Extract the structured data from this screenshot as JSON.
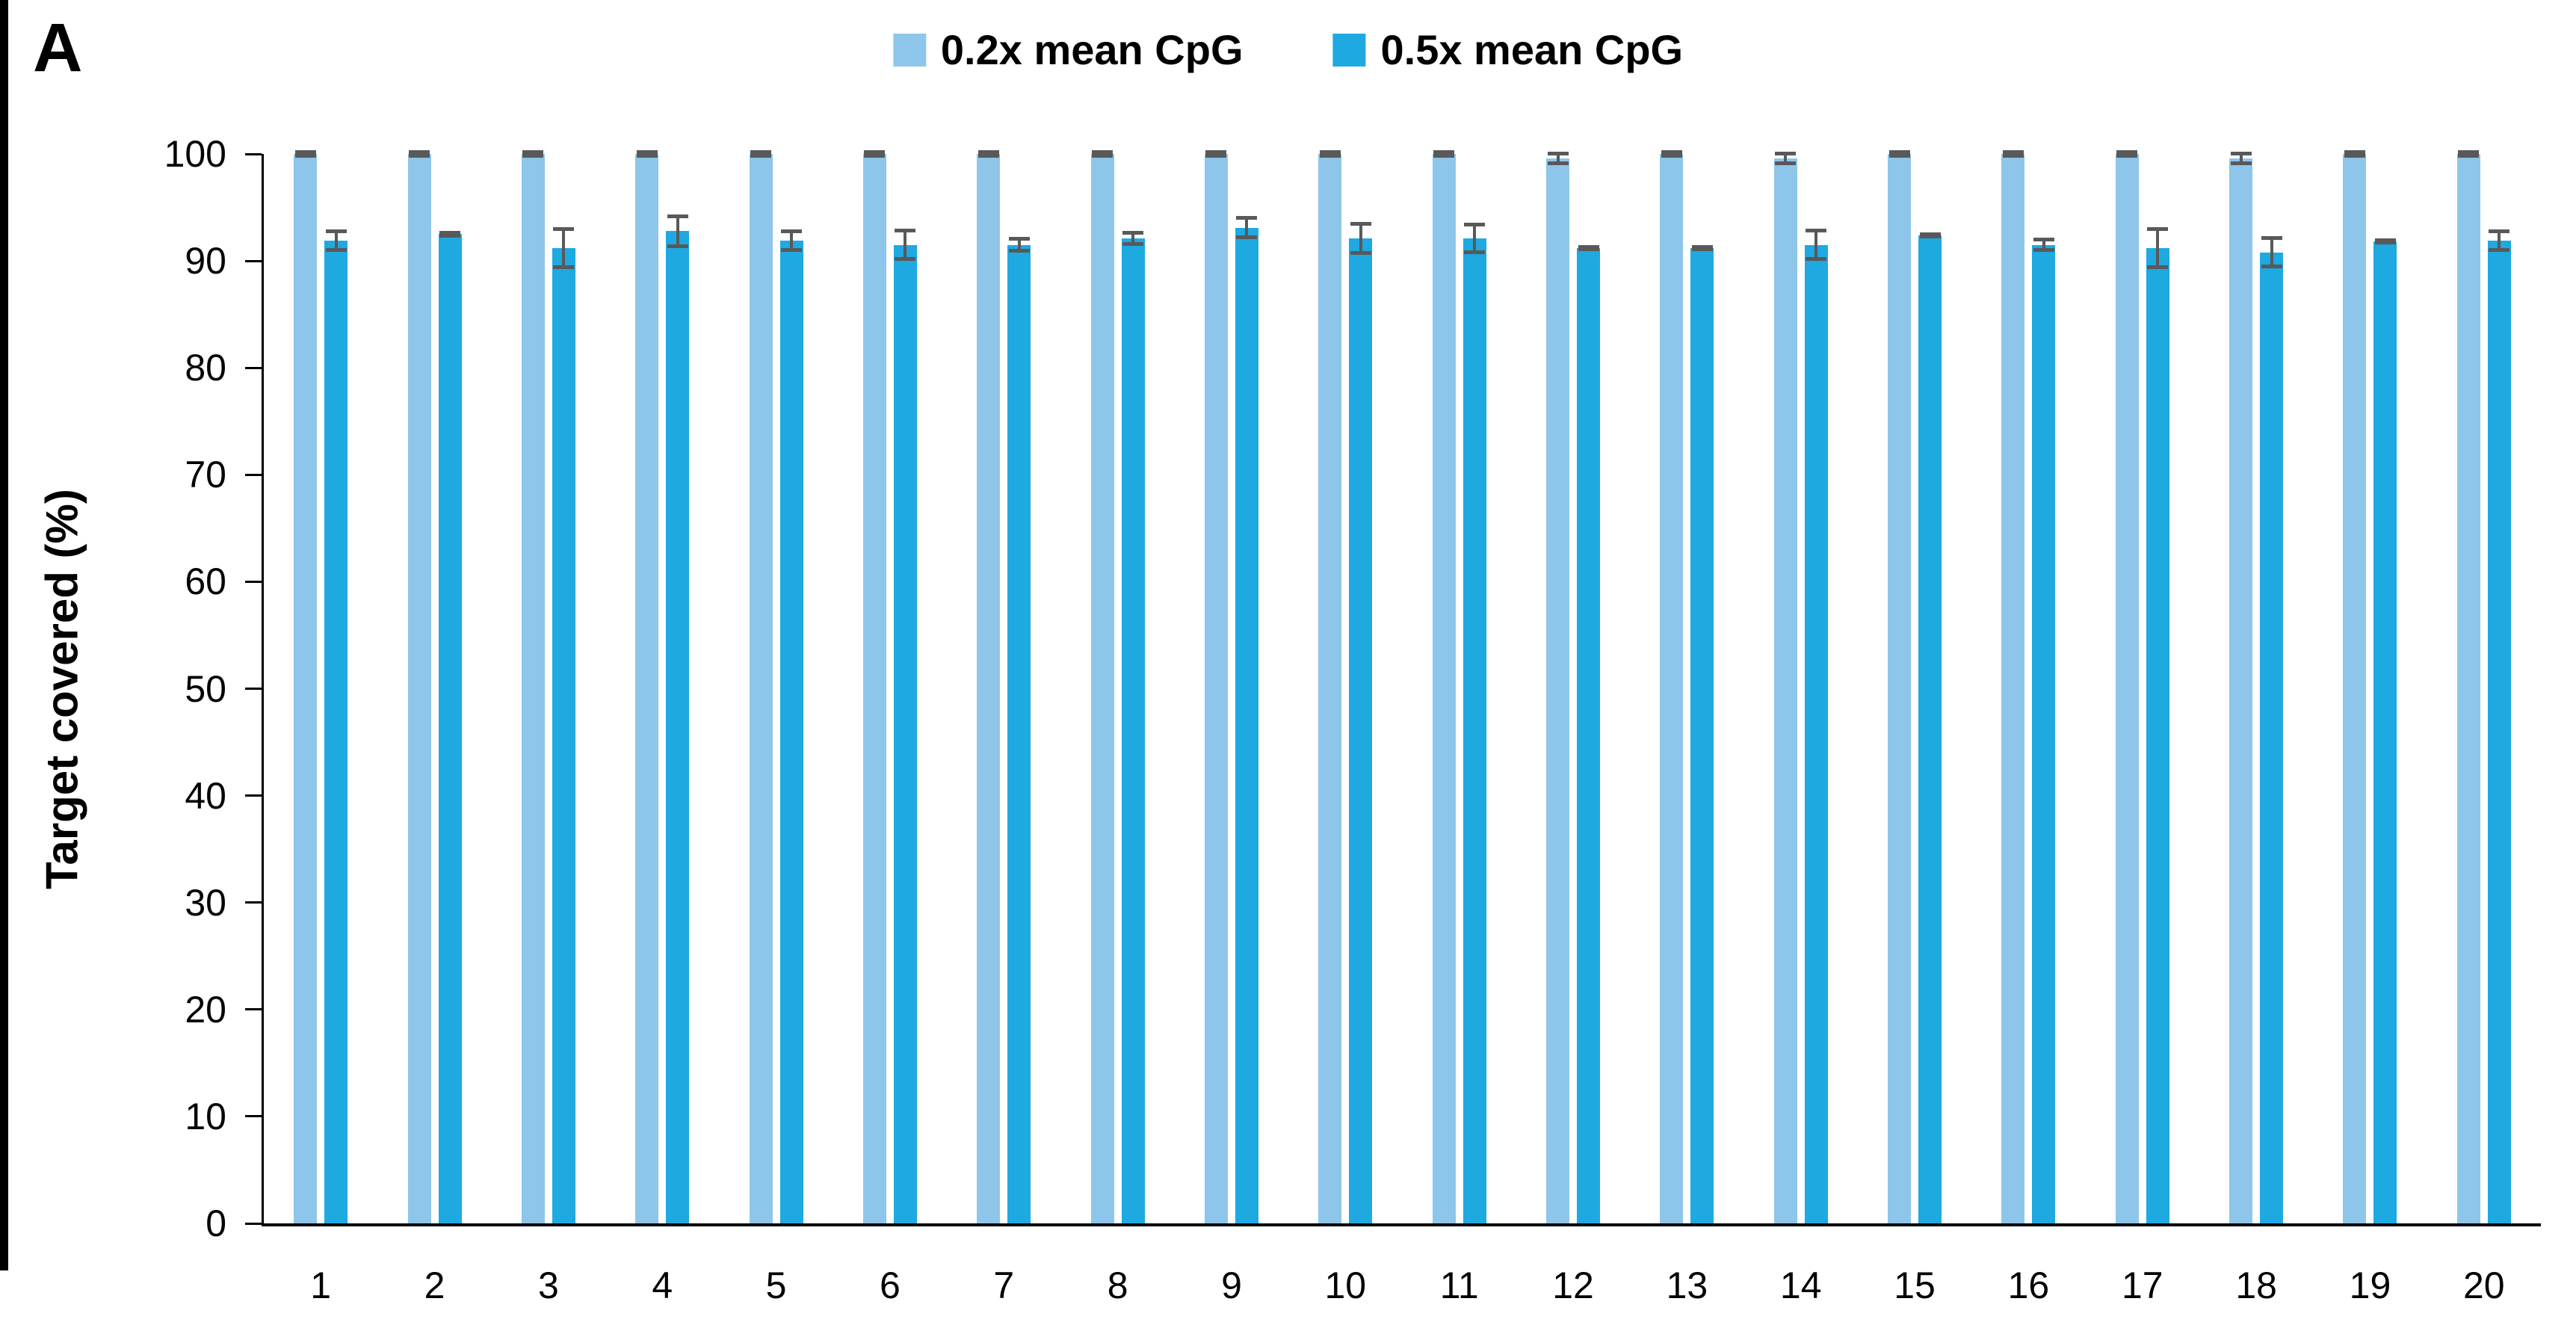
{
  "panel_label": "A",
  "colors": {
    "series1": "#8DC6EA",
    "series2": "#1EA9E1",
    "error_bar": "#595959",
    "axis": "#000000",
    "background": "#FFFFFF"
  },
  "chart_data": {
    "type": "bar",
    "title": "",
    "xlabel": "",
    "ylabel": "Target covered (%)",
    "ylim": [
      0,
      100
    ],
    "yticks": [
      0,
      10,
      20,
      30,
      40,
      50,
      60,
      70,
      80,
      90,
      100
    ],
    "grid": false,
    "legend_position": "top",
    "categories": [
      "1",
      "2",
      "3",
      "4",
      "5",
      "6",
      "7",
      "8",
      "9",
      "10",
      "11",
      "12",
      "13",
      "14",
      "15",
      "16",
      "17",
      "18",
      "19",
      "20"
    ],
    "series": [
      {
        "name": "0.2x mean CpG",
        "color": "#8DC6EA",
        "values": [
          100,
          100,
          100,
          100,
          100,
          100,
          100,
          100,
          100,
          100,
          100,
          99.6,
          100,
          99.6,
          100,
          100,
          100,
          99.6,
          100,
          100
        ],
        "errors": [
          0.15,
          0.15,
          0.15,
          0.15,
          0.15,
          0.15,
          0.15,
          0.15,
          0.15,
          0.15,
          0.15,
          0.45,
          0.15,
          0.45,
          0.15,
          0.15,
          0.15,
          0.45,
          0.15,
          0.15
        ]
      },
      {
        "name": "0.5x mean CpG",
        "color": "#1EA9E1",
        "values": [
          91.9,
          92.5,
          91.2,
          92.8,
          91.9,
          91.5,
          91.5,
          92.1,
          93.1,
          92.1,
          92.1,
          91.2,
          91.2,
          91.5,
          92.4,
          91.5,
          91.2,
          90.8,
          91.8,
          91.9
        ],
        "errors": [
          0.9,
          0.15,
          1.8,
          1.4,
          0.9,
          1.35,
          0.55,
          0.5,
          0.9,
          1.35,
          1.3,
          0.1,
          0.1,
          1.35,
          0.1,
          0.5,
          1.8,
          1.35,
          0.1,
          0.9
        ]
      }
    ]
  }
}
